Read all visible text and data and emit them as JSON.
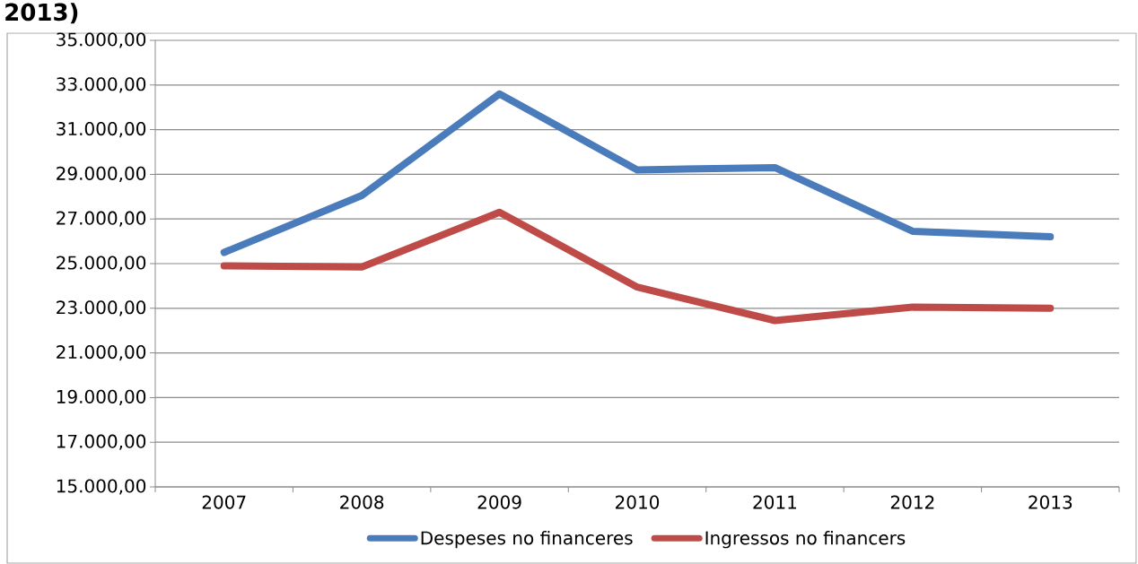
{
  "chart_data": {
    "type": "line",
    "title": "2013)",
    "categories": [
      "2007",
      "2008",
      "2009",
      "2010",
      "2011",
      "2012",
      "2013"
    ],
    "series": [
      {
        "name": "Despeses no financeres",
        "color": "#4a7bbb",
        "values": [
          25500,
          28050,
          32600,
          29200,
          29300,
          26450,
          26200
        ]
      },
      {
        "name": "Ingressos no financers",
        "color": "#be4b48",
        "values": [
          24900,
          24850,
          27300,
          23950,
          22450,
          23050,
          23000
        ]
      }
    ],
    "ylim": [
      15000,
      35000
    ],
    "yticks": [
      {
        "value": 15000,
        "label": "15.000,00"
      },
      {
        "value": 17000,
        "label": "17.000,00"
      },
      {
        "value": 19000,
        "label": "19.000,00"
      },
      {
        "value": 21000,
        "label": "21.000,00"
      },
      {
        "value": 23000,
        "label": "23.000,00"
      },
      {
        "value": 25000,
        "label": "25.000,00"
      },
      {
        "value": 27000,
        "label": "27.000,00"
      },
      {
        "value": 29000,
        "label": "29.000,00"
      },
      {
        "value": 31000,
        "label": "31.000,00"
      },
      {
        "value": 33000,
        "label": "33.000,00"
      },
      {
        "value": 35000,
        "label": "35.000,00"
      }
    ],
    "grid": "y",
    "legend": "bottom",
    "marker": "none",
    "line_style": "solid"
  }
}
